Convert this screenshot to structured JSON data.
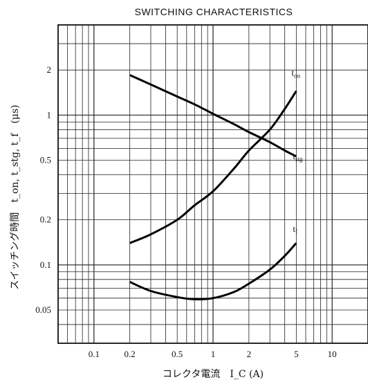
{
  "chart_data": {
    "type": "line",
    "title": "SWITCHING CHARACTERISTICS",
    "xlabel": "コレクタ電流　I_C (A)",
    "ylabel": "スイッチング時間　t_on, t_stg, t_f　(μs)",
    "xscale": "log",
    "yscale": "log",
    "xlim": [
      0.05,
      20
    ],
    "ylim": [
      0.03,
      4
    ],
    "x_ticks": [
      {
        "value": 0.1,
        "label": "0.1"
      },
      {
        "value": 0.2,
        "label": "0.2"
      },
      {
        "value": 0.5,
        "label": "0.5"
      },
      {
        "value": 1,
        "label": "1"
      },
      {
        "value": 2,
        "label": "2"
      },
      {
        "value": 5,
        "label": "5"
      },
      {
        "value": 10,
        "label": "10"
      }
    ],
    "y_ticks": [
      {
        "value": 0.05,
        "label": "0.05"
      },
      {
        "value": 0.1,
        "label": "0.1"
      },
      {
        "value": 0.2,
        "label": "0.2"
      },
      {
        "value": 0.5,
        "label": "0.5"
      },
      {
        "value": 1,
        "label": "1"
      },
      {
        "value": 2,
        "label": "2"
      }
    ],
    "grid": true,
    "series": [
      {
        "name": "t_on",
        "label_main": "t",
        "label_sub": "on",
        "points": [
          [
            0.2,
            0.14
          ],
          [
            0.3,
            0.16
          ],
          [
            0.5,
            0.2
          ],
          [
            0.7,
            0.25
          ],
          [
            1.0,
            0.31
          ],
          [
            1.5,
            0.44
          ],
          [
            2.0,
            0.58
          ],
          [
            3.0,
            0.8
          ],
          [
            4.0,
            1.1
          ],
          [
            5.0,
            1.45
          ]
        ]
      },
      {
        "name": "t_stg",
        "label_main": "t",
        "label_sub": "stg",
        "points": [
          [
            0.2,
            1.85
          ],
          [
            0.3,
            1.6
          ],
          [
            0.5,
            1.33
          ],
          [
            0.7,
            1.18
          ],
          [
            1.0,
            1.02
          ],
          [
            1.5,
            0.87
          ],
          [
            2.0,
            0.77
          ],
          [
            3.0,
            0.66
          ],
          [
            4.0,
            0.58
          ],
          [
            5.0,
            0.53
          ]
        ]
      },
      {
        "name": "t_f",
        "label_main": "t",
        "label_sub": "f",
        "points": [
          [
            0.2,
            0.077
          ],
          [
            0.3,
            0.067
          ],
          [
            0.5,
            0.061
          ],
          [
            0.7,
            0.059
          ],
          [
            1.0,
            0.06
          ],
          [
            1.5,
            0.066
          ],
          [
            2.0,
            0.075
          ],
          [
            3.0,
            0.093
          ],
          [
            4.0,
            0.115
          ],
          [
            5.0,
            0.14
          ]
        ]
      }
    ]
  }
}
